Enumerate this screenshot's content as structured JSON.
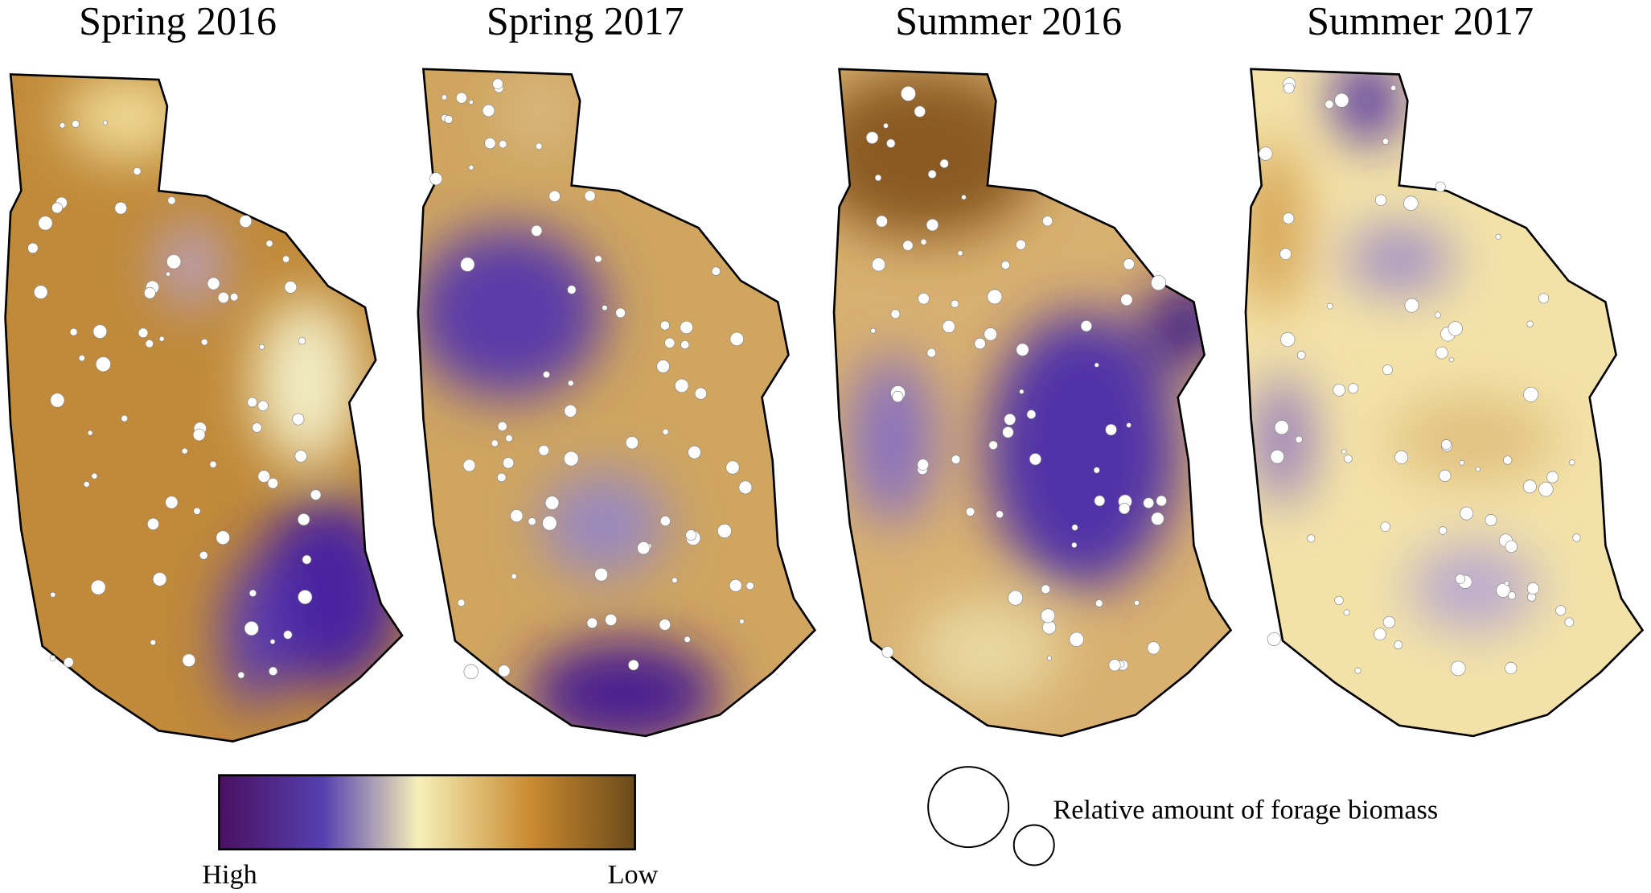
{
  "panels": [
    {
      "title": "Spring 2016"
    },
    {
      "title": "Spring 2017"
    },
    {
      "title": "Summer 2016"
    },
    {
      "title": "Summer 2017"
    }
  ],
  "colorbar": {
    "high_label": "High",
    "low_label": "Low"
  },
  "legend": {
    "label": "Relative amount of forage biomass"
  }
}
